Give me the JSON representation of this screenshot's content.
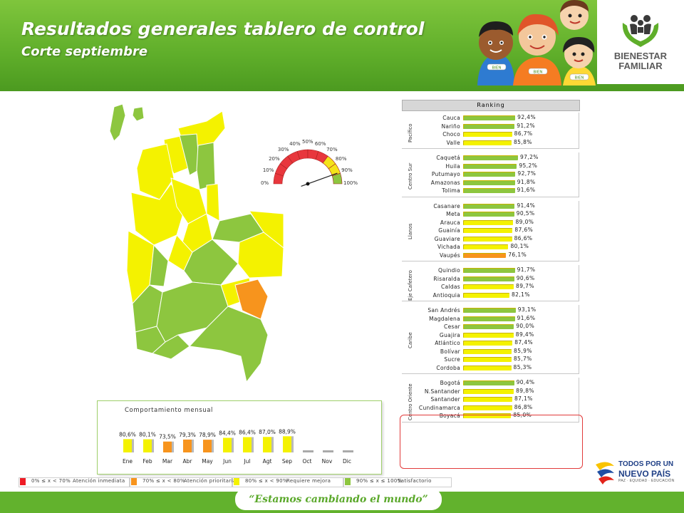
{
  "header": {
    "title": "Resultados generales tablero de control",
    "subtitle": "Corte septiembre",
    "logo_line1": "BIENESTAR",
    "logo_line2": "FAMILIAR",
    "kids_badges": [
      "BIEN",
      "BIEN",
      "BIEN"
    ]
  },
  "gauge": {
    "value_percent": 89,
    "tick_labels": [
      "0%",
      "10%",
      "20%",
      "30%",
      "40%",
      "50%",
      "60%",
      "70%",
      "80%",
      "90%",
      "100%"
    ]
  },
  "ranking": {
    "title": "Ranking",
    "groups": [
      {
        "name": "Pacífico",
        "items": [
          {
            "dept": "Cauca",
            "value": 92.4,
            "label": "92,4%",
            "color": "#8dc63f"
          },
          {
            "dept": "Nariño",
            "value": 91.2,
            "label": "91,2%",
            "color": "#8dc63f"
          },
          {
            "dept": "Choco",
            "value": 86.7,
            "label": "86,7%",
            "color": "#f4f200"
          },
          {
            "dept": "Valle",
            "value": 85.8,
            "label": "85,8%",
            "color": "#f4f200"
          }
        ]
      },
      {
        "name": "Centro Sur",
        "items": [
          {
            "dept": "Caquetá",
            "value": 97.2,
            "label": "97,2%",
            "color": "#8dc63f"
          },
          {
            "dept": "Huila",
            "value": 95.2,
            "label": "95,2%",
            "color": "#8dc63f"
          },
          {
            "dept": "Putumayo",
            "value": 92.7,
            "label": "92,7%",
            "color": "#8dc63f"
          },
          {
            "dept": "Amazonas",
            "value": 91.8,
            "label": "91,8%",
            "color": "#8dc63f"
          },
          {
            "dept": "Tolima",
            "value": 91.6,
            "label": "91,6%",
            "color": "#8dc63f"
          }
        ]
      },
      {
        "name": "Llanos",
        "items": [
          {
            "dept": "Casanare",
            "value": 91.4,
            "label": "91,4%",
            "color": "#8dc63f"
          },
          {
            "dept": "Meta",
            "value": 90.5,
            "label": "90,5%",
            "color": "#8dc63f"
          },
          {
            "dept": "Arauca",
            "value": 89.0,
            "label": "89,0%",
            "color": "#f4f200"
          },
          {
            "dept": "Guainía",
            "value": 87.6,
            "label": "87,6%",
            "color": "#f4f200"
          },
          {
            "dept": "Guaviare",
            "value": 86.6,
            "label": "86,6%",
            "color": "#f4f200"
          },
          {
            "dept": "Vichada",
            "value": 80.1,
            "label": "80,1%",
            "color": "#f4f200"
          },
          {
            "dept": "Vaupés",
            "value": 76.1,
            "label": "76,1%",
            "color": "#f7941d"
          }
        ]
      },
      {
        "name": "Eje Cafetero",
        "items": [
          {
            "dept": "Quindio",
            "value": 91.7,
            "label": "91,7%",
            "color": "#8dc63f"
          },
          {
            "dept": "Risaralda",
            "value": 90.6,
            "label": "90,6%",
            "color": "#8dc63f"
          },
          {
            "dept": "Caldas",
            "value": 89.7,
            "label": "89,7%",
            "color": "#f4f200"
          },
          {
            "dept": "Antioquia",
            "value": 82.1,
            "label": "82,1%",
            "color": "#f4f200"
          }
        ]
      },
      {
        "name": "Caribe",
        "items": [
          {
            "dept": "San Andrés",
            "value": 93.1,
            "label": "93,1%",
            "color": "#8dc63f"
          },
          {
            "dept": "Magdalena",
            "value": 91.6,
            "label": "91,6%",
            "color": "#8dc63f"
          },
          {
            "dept": "Cesar",
            "value": 90.0,
            "label": "90,0%",
            "color": "#8dc63f"
          },
          {
            "dept": "Guajira",
            "value": 89.4,
            "label": "89,4%",
            "color": "#f4f200"
          },
          {
            "dept": "Atlántico",
            "value": 87.4,
            "label": "87,4%",
            "color": "#f4f200"
          },
          {
            "dept": "Bolívar",
            "value": 85.9,
            "label": "85,9%",
            "color": "#f4f200"
          },
          {
            "dept": "Sucre",
            "value": 85.7,
            "label": "85,7%",
            "color": "#f4f200"
          },
          {
            "dept": "Cordoba",
            "value": 85.3,
            "label": "85,3%",
            "color": "#f4f200"
          }
        ]
      },
      {
        "name": "Centro Oriente",
        "items": [
          {
            "dept": "Bogotá",
            "value": 90.4,
            "label": "90,4%",
            "color": "#8dc63f"
          },
          {
            "dept": "N.Santander",
            "value": 89.8,
            "label": "89,8%",
            "color": "#f4f200"
          },
          {
            "dept": "Santander",
            "value": 87.1,
            "label": "87,1%",
            "color": "#f4f200"
          },
          {
            "dept": "Cundinamarca",
            "value": 86.8,
            "label": "86,8%",
            "color": "#f4f200"
          },
          {
            "dept": "Boyacá",
            "value": 85.0,
            "label": "85,0%",
            "color": "#f4f200"
          }
        ]
      }
    ]
  },
  "chart_data": {
    "type": "bar",
    "title": "Comportamiento mensual",
    "categories": [
      "Ene",
      "Feb",
      "Mar",
      "Abr",
      "May",
      "Jun",
      "Jul",
      "Agt",
      "Sep",
      "Oct",
      "Nov",
      "Dic"
    ],
    "values": [
      80.6,
      80.1,
      73.5,
      79.3,
      78.9,
      84.4,
      86.4,
      87.0,
      88.9,
      null,
      null,
      null
    ],
    "labels": [
      "80,6%",
      "80,1%",
      "73,5%",
      "79,3%",
      "78,9%",
      "84,4%",
      "86,4%",
      "87,0%",
      "88,9%",
      "",
      "",
      ""
    ],
    "colors": [
      "#f4f200",
      "#f4f200",
      "#f7941d",
      "#f7941d",
      "#f7941d",
      "#f4f200",
      "#f4f200",
      "#f4f200",
      "#f4f200",
      "#aaaaaa",
      "#aaaaaa",
      "#aaaaaa"
    ],
    "xlabel": "",
    "ylabel": "",
    "ylim": [
      0,
      100
    ]
  },
  "legend": [
    {
      "range": "0% ≤ x < 70%",
      "meaning": "Atención inmediata",
      "color": "#ee1c25"
    },
    {
      "range": "70% ≤ x < 80%",
      "meaning": "Atención prioritaria",
      "color": "#f7941d"
    },
    {
      "range": "80% ≤ x < 90%",
      "meaning": "Requiere mejora",
      "color": "#f4f200"
    },
    {
      "range": "90% ≤ x ≤ 100%",
      "meaning": "Satisfactorio",
      "color": "#8dc63f"
    }
  ],
  "footer": {
    "slogan": "“Estamos cambiando el mundo”",
    "tp_line1": "TODOS POR UN",
    "tp_line2": "NUEVO PAÍS",
    "tp_line3": "PAZ · EQUIDAD · EDUCACIÓN"
  }
}
